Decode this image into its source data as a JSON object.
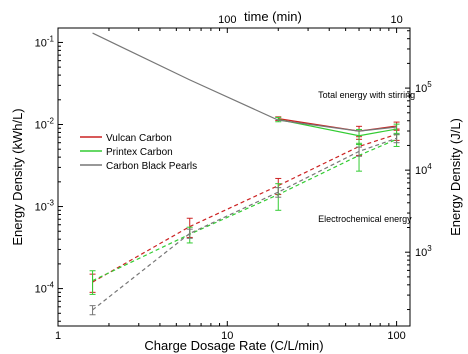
{
  "chart_data": {
    "type": "line",
    "xlabel": "Charge Dosage Rate (C/L/min)",
    "ylabel": "Energy Density (kWh/L)",
    "top_xlabel": "time (min)",
    "right_ylabel": "Energy Density (J/L)",
    "x_scale": "log",
    "y_scale": "log",
    "xlim": [
      1,
      120
    ],
    "ylim": [
      3.5e-05,
      0.15
    ],
    "x_ticks": [
      {
        "value": 1,
        "label": "1"
      },
      {
        "value": 10,
        "label": "10"
      },
      {
        "value": 100,
        "label": "100"
      }
    ],
    "y_ticks": [
      {
        "value": 0.0001,
        "base": "10",
        "exp": "-4"
      },
      {
        "value": 0.001,
        "base": "10",
        "exp": "-3"
      },
      {
        "value": 0.01,
        "base": "10",
        "exp": "-2"
      },
      {
        "value": 0.1,
        "base": "10",
        "exp": "-1"
      }
    ],
    "top_x_ticks": [
      {
        "value": 1,
        "label": "100"
      },
      {
        "value": 10,
        "label": "10"
      }
    ],
    "right_y_ticks": [
      {
        "value": 1000,
        "base": "10",
        "exp": "3"
      },
      {
        "value": 10000,
        "base": "10",
        "exp": "4"
      },
      {
        "value": 100000,
        "base": "10",
        "exp": "5"
      }
    ],
    "annotations": [
      {
        "text": "Total energy with stirring",
        "x": 30,
        "y": 0.021
      },
      {
        "text": "Electrochemical energy",
        "x": 30,
        "y": 0.00065
      }
    ],
    "legend_position": "left",
    "series": [
      {
        "name": "Vulcan Carbon",
        "color": "#cc2222",
        "total": {
          "x": [
            20,
            60,
            100
          ],
          "y": [
            0.0118,
            0.0083,
            0.0096
          ],
          "err": [
            0.0006,
            0.0012,
            0.0011
          ]
        },
        "electrochemical": {
          "x": [
            1.6,
            6,
            20,
            60,
            100
          ],
          "y": [
            0.00012,
            0.00057,
            0.0018,
            0.0054,
            0.0076
          ],
          "err": [
            3e-05,
            0.00015,
            0.0004,
            0.0012,
            0.0012
          ]
        }
      },
      {
        "name": "Printex Carbon",
        "color": "#33cc33",
        "total": {
          "x": [
            20,
            60,
            100
          ],
          "y": [
            0.0115,
            0.0073,
            0.0088
          ],
          "err": [
            0.0007,
            0.0014,
            0.0013
          ]
        },
        "electrochemical": {
          "x": [
            1.6,
            6,
            20,
            60,
            100
          ],
          "y": [
            0.000125,
            0.00046,
            0.0014,
            0.0042,
            0.0066
          ],
          "err": [
            4e-05,
            0.0001,
            0.0005,
            0.0015,
            0.0012
          ]
        }
      },
      {
        "name": "Carbon Black Pearls",
        "color": "#777777",
        "total": {
          "x": [
            1.6,
            6,
            20,
            60,
            100
          ],
          "y": [
            0.13,
            0.035,
            0.0113,
            0.0083,
            0.0093
          ],
          "err": [
            0,
            0,
            0,
            0,
            0
          ]
        },
        "electrochemical": {
          "x": [
            1.6,
            6,
            20,
            60,
            100
          ],
          "y": [
            5.5e-05,
            0.00047,
            0.0015,
            0.0047,
            0.0068
          ],
          "err": [
            7e-06,
            6e-05,
            0.0002,
            0.0006,
            0.0008
          ]
        }
      }
    ]
  }
}
